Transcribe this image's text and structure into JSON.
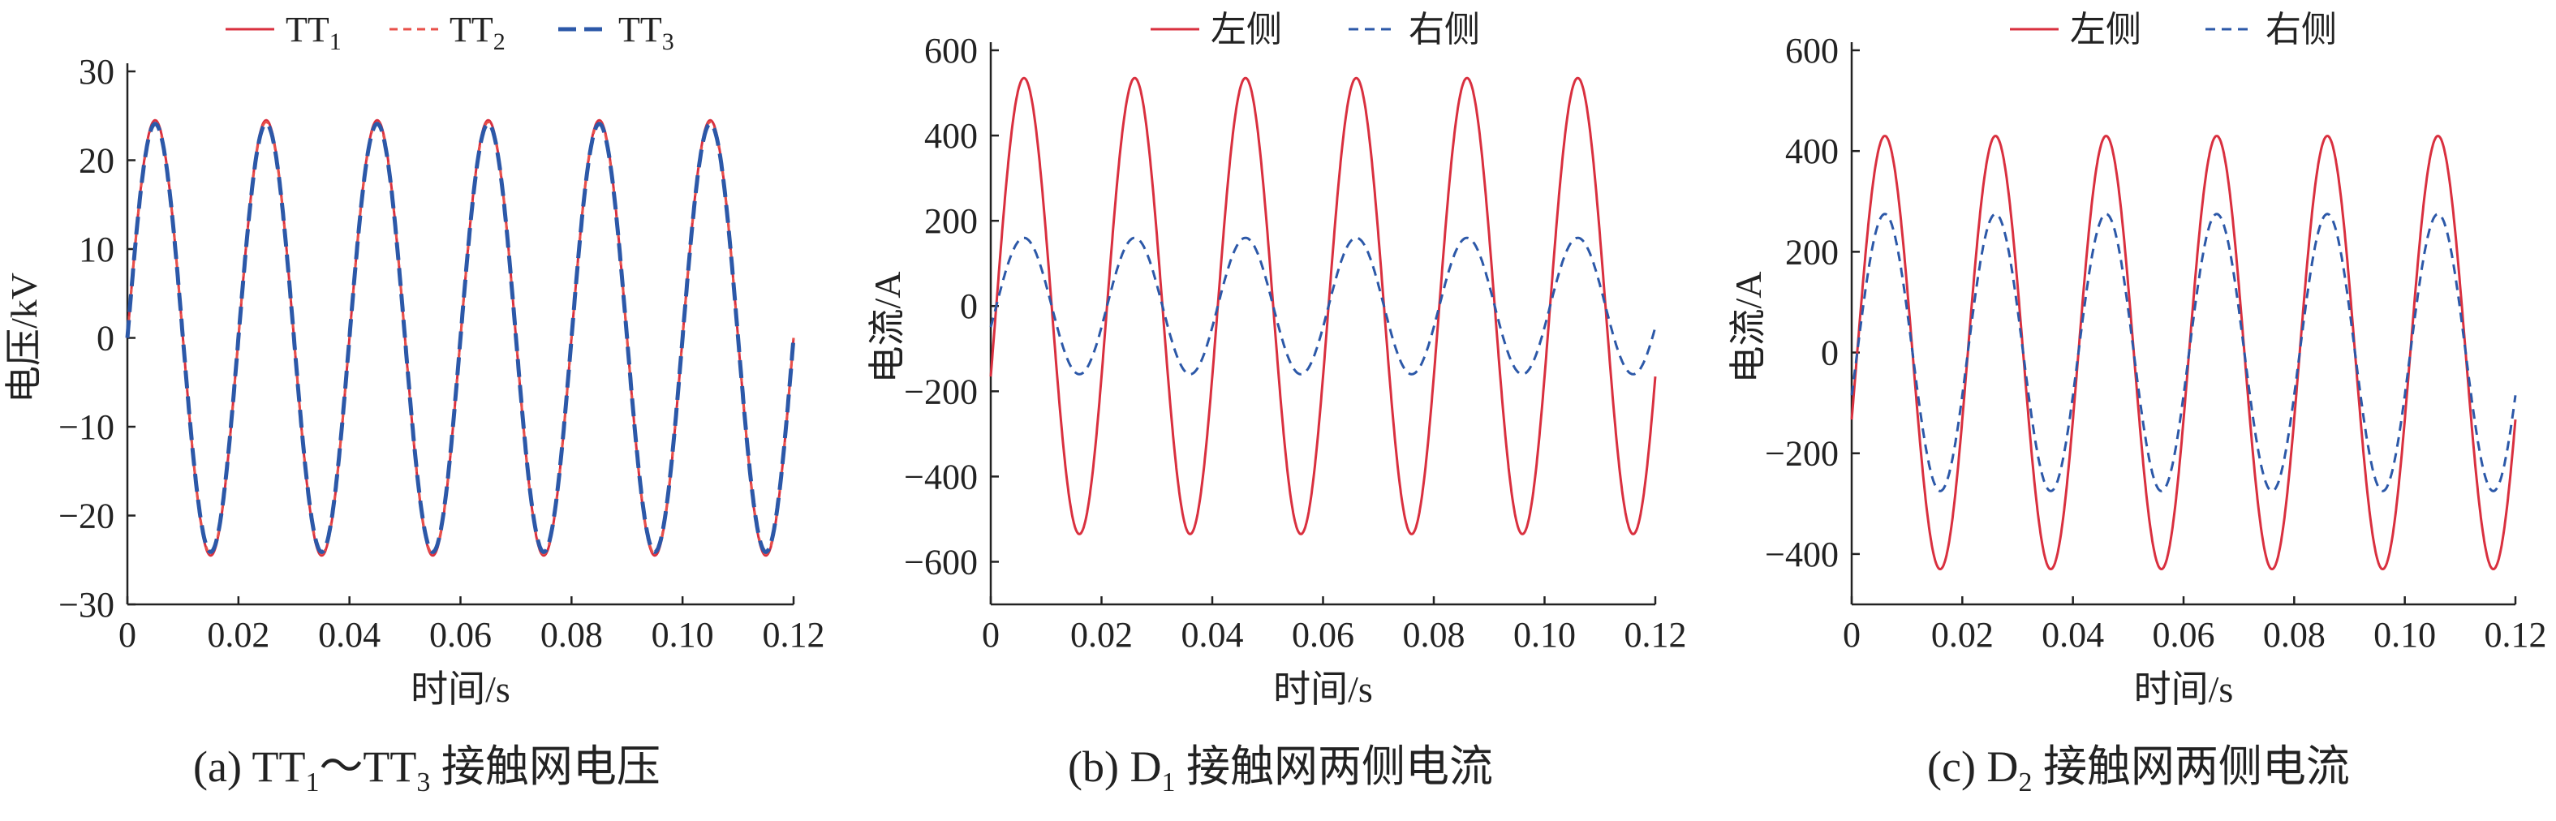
{
  "colors": {
    "red": "#d9303f",
    "red_light": "#e8504a",
    "blue": "#2c58a8",
    "axis": "#222222"
  },
  "chart_data": [
    {
      "type": "line",
      "caption": "(a) TT₁～TT₃ 接触网电压",
      "xlabel": "时间/s",
      "ylabel": "电压/kV",
      "xlim": [
        0,
        0.12
      ],
      "ylim": [
        -30,
        30
      ],
      "xticks": [
        "0",
        "0.02",
        "0.04",
        "0.06",
        "0.08",
        "0.10",
        "0.12"
      ],
      "yticks": [
        -30,
        -20,
        -10,
        0,
        10,
        20,
        30
      ],
      "frequency_hz": 50,
      "legend_position": "top",
      "series": [
        {
          "name": "TT₁",
          "amplitude": 24.5,
          "phase_deg": 0,
          "style": "solid",
          "color": "#d9303f"
        },
        {
          "name": "TT₂",
          "amplitude": 24.3,
          "phase_deg": 0,
          "style": "short-dash",
          "color": "#e8504a"
        },
        {
          "name": "TT₃",
          "amplitude": 24.1,
          "phase_deg": 0,
          "style": "long-dash",
          "color": "#2c58a8"
        }
      ]
    },
    {
      "type": "line",
      "caption": "(b) D₁ 接触网两侧电流",
      "xlabel": "时间/s",
      "ylabel": "电流/A",
      "xlim": [
        0,
        0.12
      ],
      "ylim": [
        -700,
        600
      ],
      "xticks": [
        "0",
        "0.02",
        "0.04",
        "0.06",
        "0.08",
        "0.10",
        "0.12"
      ],
      "yticks": [
        -600,
        -400,
        -200,
        0,
        200,
        400,
        600
      ],
      "frequency_hz": 50,
      "legend_position": "top",
      "series": [
        {
          "name": "左侧",
          "amplitude": 535,
          "phase_deg": -18,
          "style": "solid",
          "color": "#d9303f"
        },
        {
          "name": "右侧",
          "amplitude": 160,
          "phase_deg": -18,
          "style": "dash",
          "color": "#2c58a8"
        }
      ]
    },
    {
      "type": "line",
      "caption": "(c) D₂ 接触网两侧电流",
      "xlabel": "时间/s",
      "ylabel": "电流/A",
      "xlim": [
        0,
        0.12
      ],
      "ylim": [
        -500,
        600
      ],
      "xticks": [
        "0",
        "0.02",
        "0.04",
        "0.06",
        "0.08",
        "0.10",
        "0.12"
      ],
      "yticks": [
        -400,
        -200,
        0,
        200,
        400,
        600
      ],
      "frequency_hz": 50,
      "legend_position": "top",
      "series": [
        {
          "name": "左侧",
          "amplitude": 430,
          "phase_deg": -18,
          "style": "solid",
          "color": "#d9303f"
        },
        {
          "name": "右侧",
          "amplitude": 275,
          "phase_deg": -18,
          "style": "dash",
          "color": "#2c58a8"
        }
      ]
    }
  ],
  "captions": {
    "a": {
      "prefix": "(a) TT",
      "sub1": "1",
      "mid": "～TT",
      "sub2": "3",
      "suffix": " 接触网电压"
    },
    "b": {
      "prefix": "(b) D",
      "sub1": "1",
      "suffix": " 接触网两侧电流"
    },
    "c": {
      "prefix": "(c) D",
      "sub1": "2",
      "suffix": " 接触网两侧电流"
    }
  }
}
